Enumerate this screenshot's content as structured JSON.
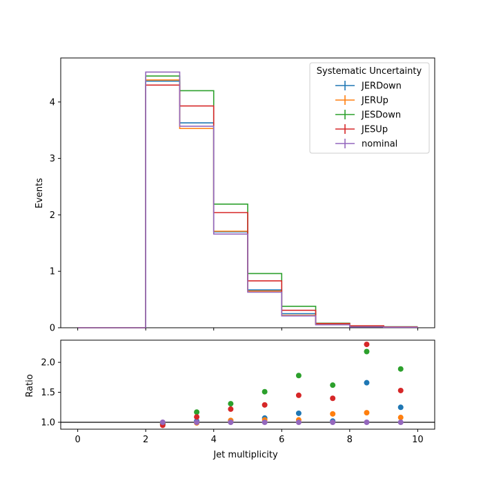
{
  "chart_data": [
    {
      "type": "line",
      "style": "step histogram",
      "xlim": [
        -0.5,
        10.5
      ],
      "ylim": [
        0,
        4.78
      ],
      "bin_edges": [
        0,
        1,
        2,
        3,
        4,
        5,
        6,
        7,
        8,
        9,
        10
      ],
      "xticks": [
        0,
        2,
        4,
        6,
        8,
        10
      ],
      "yticks": [
        0,
        1,
        2,
        3,
        4
      ],
      "xticklabels_visible": false,
      "ylabel": "Events",
      "legend": {
        "title": "Systematic Uncertainty",
        "placement": "upper right"
      },
      "series": [
        {
          "name": "JERDown",
          "color": "#1f77b4",
          "values": [
            0,
            0,
            4.37,
            3.63,
            1.7,
            0.67,
            0.25,
            0.065,
            0.025,
            0.015
          ]
        },
        {
          "name": "JERUp",
          "color": "#ff7f0e",
          "values": [
            0,
            0,
            4.39,
            3.53,
            1.71,
            0.65,
            0.22,
            0.06,
            0.018,
            0.012
          ]
        },
        {
          "name": "JESDown",
          "color": "#2ca02c",
          "values": [
            0,
            0,
            4.46,
            4.2,
            2.19,
            0.96,
            0.38,
            0.08,
            0.03,
            0.018
          ]
        },
        {
          "name": "JESUp",
          "color": "#d62728",
          "values": [
            0,
            0,
            4.3,
            3.93,
            2.04,
            0.83,
            0.31,
            0.075,
            0.035,
            0.015
          ]
        },
        {
          "name": "nominal",
          "color": "#9467bd",
          "values": [
            0,
            0,
            4.53,
            3.57,
            1.66,
            0.63,
            0.21,
            0.053,
            0.015,
            0.008
          ]
        }
      ]
    },
    {
      "type": "scatter",
      "xlim": [
        -0.5,
        10.5
      ],
      "ylim": [
        0.885,
        2.37
      ],
      "xticks": [
        0,
        2,
        4,
        6,
        8,
        10
      ],
      "xticklabels": [
        "0",
        "2",
        "4",
        "6",
        "8",
        "10"
      ],
      "yticks": [
        1.0,
        1.5,
        2.0
      ],
      "yticklabels": [
        "1.0",
        "1.5",
        "2.0"
      ],
      "xlabel": "Jet multiplicity",
      "ylabel": "Ratio",
      "reference_line": 1.0,
      "x": [
        2.5,
        3.5,
        4.5,
        5.5,
        6.5,
        7.5,
        8.5,
        9.5
      ],
      "series": [
        {
          "name": "JERDown",
          "color": "#1f77b4",
          "values": [
            0.97,
            1.02,
            1.03,
            1.07,
            1.15,
            1.02,
            1.66,
            1.25
          ]
        },
        {
          "name": "JERUp",
          "color": "#ff7f0e",
          "values": [
            0.97,
            0.99,
            1.03,
            1.04,
            1.04,
            1.14,
            1.16,
            1.08
          ]
        },
        {
          "name": "JESDown",
          "color": "#2ca02c",
          "values": [
            0.98,
            1.17,
            1.31,
            1.51,
            1.78,
            1.62,
            2.18,
            1.89
          ]
        },
        {
          "name": "JESUp",
          "color": "#d62728",
          "values": [
            0.95,
            1.09,
            1.22,
            1.29,
            1.45,
            1.4,
            2.3,
            1.53
          ]
        },
        {
          "name": "nominal",
          "color": "#9467bd",
          "values": [
            1.0,
            1.0,
            1.0,
            1.0,
            1.0,
            1.0,
            1.0,
            1.0
          ]
        }
      ]
    }
  ]
}
